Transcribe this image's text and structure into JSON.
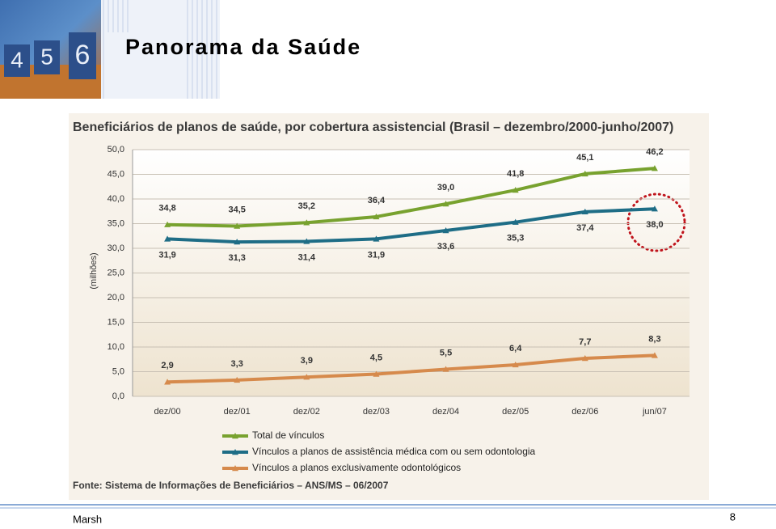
{
  "header": {
    "title": "Panorama da Saúde"
  },
  "footer": {
    "company": "Marsh",
    "page_number": "8"
  },
  "chart_data": {
    "type": "line",
    "title": "Beneficiários de planos de saúde, por cobertura assistencial (Brasil – dezembro/2000-junho/2007)",
    "y_label": "(milhões)",
    "source": "Fonte: Sistema de Informações de Beneficiários – ANS/MS – 06/2007",
    "categories": [
      "dez/00",
      "dez/01",
      "dez/02",
      "dez/03",
      "dez/04",
      "dez/05",
      "dez/06",
      "jun/07"
    ],
    "series": [
      {
        "name": "Total de vínculos",
        "color": "#78a22f",
        "values": [
          34.8,
          34.5,
          35.2,
          36.4,
          39.0,
          41.8,
          45.1,
          46.2
        ],
        "value_labels": [
          "34,8",
          "34,5",
          "35,2",
          "36,4",
          "39,0",
          "41,8",
          "45,1",
          "46,2"
        ]
      },
      {
        "name": "Vínculos a planos de assistência médica com ou sem odontologia",
        "color": "#1e6d86",
        "values": [
          31.9,
          31.3,
          31.4,
          31.9,
          33.6,
          35.3,
          37.4,
          38.0
        ],
        "value_labels": [
          "31,9",
          "31,3",
          "31,4",
          "31,9",
          "33,6",
          "35,3",
          "37,4",
          "38,0"
        ]
      },
      {
        "name": "Vínculos a planos exclusivamente odontológicos",
        "color": "#d68a4c",
        "values": [
          2.9,
          3.3,
          3.9,
          4.5,
          5.5,
          6.4,
          7.7,
          8.3
        ],
        "value_labels": [
          "2,9",
          "3,3",
          "3,9",
          "4,5",
          "5,5",
          "6,4",
          "7,7",
          "8,3"
        ]
      }
    ],
    "ylim": [
      0,
      50
    ],
    "yticks": [
      {
        "value": 0,
        "label": "0,0"
      },
      {
        "value": 5,
        "label": "5,0"
      },
      {
        "value": 10,
        "label": "10,0"
      },
      {
        "value": 15,
        "label": "15,0"
      },
      {
        "value": 20,
        "label": "20,0"
      },
      {
        "value": 25,
        "label": "25,0"
      },
      {
        "value": 30,
        "label": "30,0"
      },
      {
        "value": 35,
        "label": "35,0"
      },
      {
        "value": 40,
        "label": "40,0"
      },
      {
        "value": 45,
        "label": "45,0"
      },
      {
        "value": 50,
        "label": "50,0"
      }
    ],
    "grid": true
  }
}
